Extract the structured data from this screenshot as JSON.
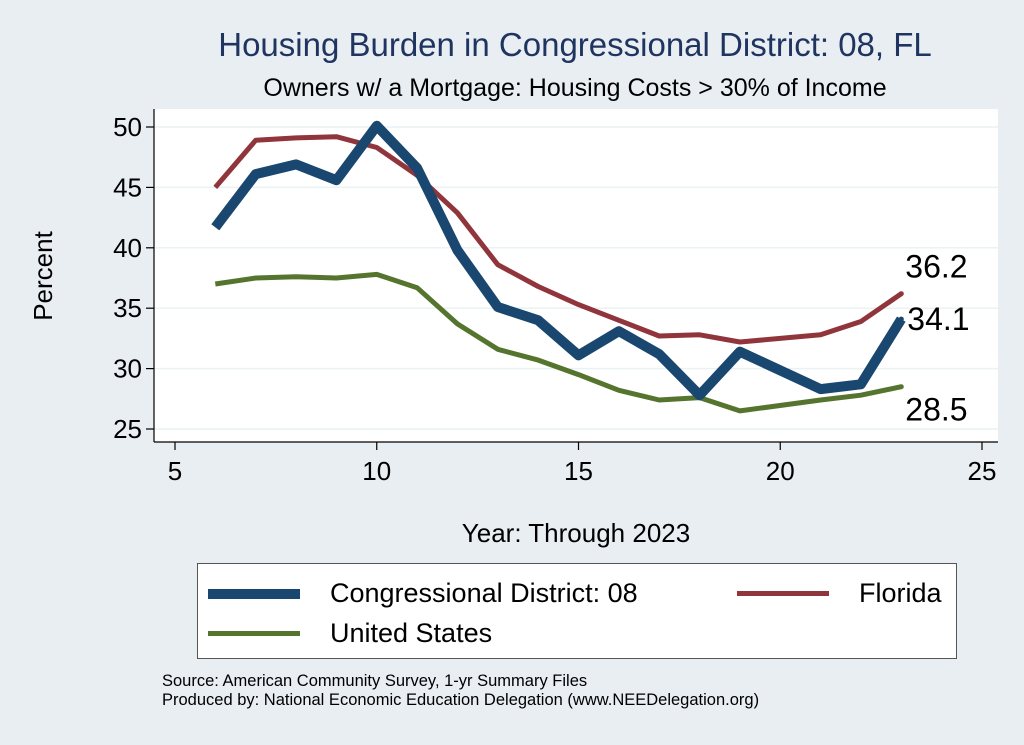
{
  "chart_data": {
    "type": "line",
    "title": "Housing Burden in Congressional District:  08, FL",
    "subtitle": "Owners w/ a Mortgage: Housing Costs > 30% of Income",
    "xlabel": "Year: Through 2023",
    "ylabel": "Percent",
    "xlim": [
      5,
      25
    ],
    "ylim": [
      25,
      50
    ],
    "xticks": [
      "5",
      "10",
      "15",
      "20",
      "25"
    ],
    "yticks": [
      "25",
      "30",
      "35",
      "40",
      "45",
      "50"
    ],
    "grid": true,
    "legend_position": "bottom",
    "series": [
      {
        "name": "Congressional District:  08",
        "color": "#1a476f",
        "x": [
          6,
          7,
          8,
          9,
          10,
          11,
          12,
          13,
          14,
          15,
          16,
          17,
          18,
          19,
          21,
          22,
          23
        ],
        "y": [
          41.7,
          46.1,
          46.9,
          45.6,
          50.1,
          46.6,
          39.8,
          35.1,
          34.0,
          31.1,
          33.1,
          31.2,
          27.8,
          31.4,
          28.3,
          28.7,
          34.1
        ],
        "end_label": "34.1"
      },
      {
        "name": "Florida",
        "color": "#90353b",
        "x": [
          6,
          7,
          8,
          9,
          10,
          11,
          12,
          13,
          14,
          15,
          16,
          17,
          18,
          19,
          21,
          22,
          23
        ],
        "y": [
          45.0,
          48.9,
          49.1,
          49.2,
          48.3,
          46.0,
          42.9,
          38.6,
          36.8,
          35.3,
          34.0,
          32.7,
          32.8,
          32.2,
          32.8,
          33.9,
          36.2
        ],
        "end_label": "36.2"
      },
      {
        "name": "United States",
        "color": "#55752f",
        "x": [
          6,
          7,
          8,
          9,
          10,
          11,
          12,
          13,
          14,
          15,
          16,
          17,
          18,
          19,
          21,
          22,
          23
        ],
        "y": [
          37.0,
          37.5,
          37.6,
          37.5,
          37.8,
          36.7,
          33.7,
          31.6,
          30.7,
          29.5,
          28.2,
          27.4,
          27.6,
          26.5,
          27.4,
          27.8,
          28.5
        ],
        "end_label": "28.5"
      }
    ]
  },
  "source": {
    "line1": "Source: American Community Survey, 1-yr Summary Files",
    "line2": "Produced by: National Economic Education Delegation (www.NEEDelegation.org)"
  }
}
